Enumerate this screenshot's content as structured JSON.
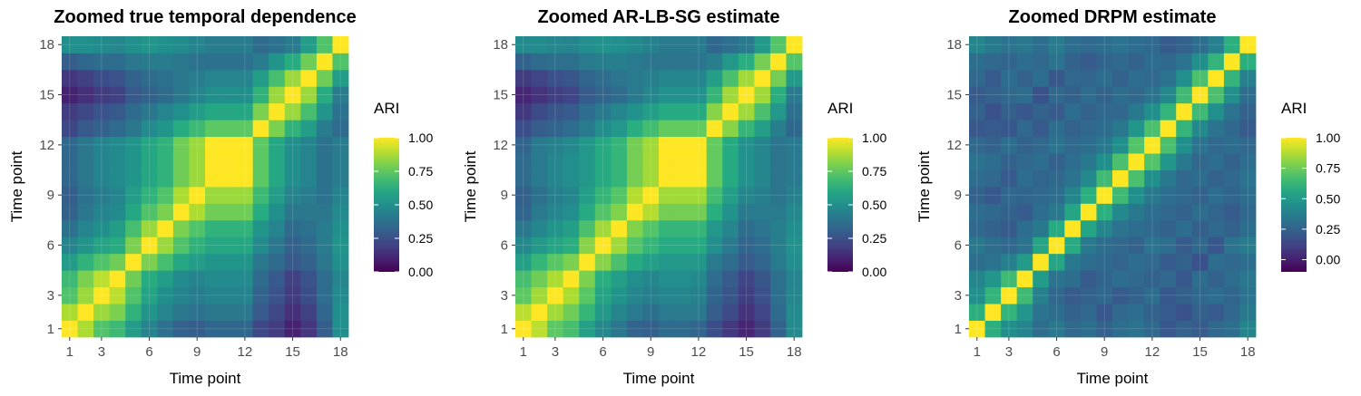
{
  "chart_data": [
    {
      "type": "heatmap",
      "title": "Zoomed true temporal dependence",
      "xlabel": "Time point",
      "ylabel": "Time point",
      "x_ticks": [
        "1",
        "3",
        "6",
        "9",
        "12",
        "15",
        "18"
      ],
      "y_ticks": [
        "1",
        "3",
        "6",
        "9",
        "12",
        "15",
        "18"
      ],
      "x_tick_values": [
        1,
        3,
        6,
        9,
        12,
        15,
        18
      ],
      "y_tick_values": [
        1,
        3,
        6,
        9,
        12,
        15,
        18
      ],
      "n": 18,
      "legend": {
        "title": "ARI",
        "ticks": [
          "1.00",
          "0.75",
          "0.50",
          "0.25",
          "0.00"
        ],
        "tick_values": [
          1,
          0.75,
          0.5,
          0.25,
          0
        ],
        "range": [
          0,
          1
        ]
      },
      "matrix": [
        [
          1.0,
          0.88,
          0.72,
          0.68,
          0.55,
          0.45,
          0.38,
          0.32,
          0.3,
          0.34,
          0.34,
          0.34,
          0.22,
          0.18,
          0.1,
          0.16,
          0.3,
          0.5
        ],
        [
          0.88,
          1.0,
          0.85,
          0.8,
          0.65,
          0.52,
          0.45,
          0.4,
          0.38,
          0.4,
          0.4,
          0.4,
          0.28,
          0.22,
          0.14,
          0.2,
          0.34,
          0.5
        ],
        [
          0.72,
          0.85,
          1.0,
          0.9,
          0.72,
          0.58,
          0.5,
          0.45,
          0.42,
          0.45,
          0.45,
          0.45,
          0.32,
          0.26,
          0.18,
          0.24,
          0.36,
          0.48
        ],
        [
          0.68,
          0.8,
          0.9,
          1.0,
          0.78,
          0.62,
          0.55,
          0.48,
          0.45,
          0.48,
          0.48,
          0.48,
          0.35,
          0.28,
          0.2,
          0.26,
          0.36,
          0.46
        ],
        [
          0.55,
          0.65,
          0.72,
          0.78,
          1.0,
          0.8,
          0.7,
          0.6,
          0.55,
          0.52,
          0.52,
          0.52,
          0.4,
          0.35,
          0.28,
          0.32,
          0.4,
          0.5
        ],
        [
          0.45,
          0.52,
          0.58,
          0.62,
          0.8,
          1.0,
          0.85,
          0.72,
          0.65,
          0.6,
          0.6,
          0.6,
          0.48,
          0.4,
          0.32,
          0.35,
          0.42,
          0.52
        ],
        [
          0.38,
          0.45,
          0.5,
          0.55,
          0.7,
          0.85,
          1.0,
          0.8,
          0.72,
          0.65,
          0.65,
          0.65,
          0.52,
          0.45,
          0.35,
          0.38,
          0.42,
          0.5
        ],
        [
          0.32,
          0.4,
          0.45,
          0.48,
          0.6,
          0.72,
          0.8,
          1.0,
          0.88,
          0.78,
          0.78,
          0.78,
          0.62,
          0.5,
          0.4,
          0.4,
          0.4,
          0.48
        ],
        [
          0.3,
          0.38,
          0.42,
          0.45,
          0.55,
          0.65,
          0.72,
          0.88,
          1.0,
          0.85,
          0.85,
          0.85,
          0.68,
          0.55,
          0.45,
          0.42,
          0.38,
          0.45
        ],
        [
          0.34,
          0.4,
          0.45,
          0.48,
          0.52,
          0.6,
          0.65,
          0.78,
          0.85,
          1.0,
          1.0,
          1.0,
          0.75,
          0.6,
          0.5,
          0.45,
          0.38,
          0.42
        ],
        [
          0.34,
          0.4,
          0.45,
          0.48,
          0.52,
          0.6,
          0.65,
          0.78,
          0.85,
          1.0,
          1.0,
          1.0,
          0.75,
          0.6,
          0.5,
          0.45,
          0.38,
          0.42
        ],
        [
          0.34,
          0.4,
          0.45,
          0.48,
          0.52,
          0.6,
          0.65,
          0.78,
          0.85,
          1.0,
          1.0,
          1.0,
          0.75,
          0.6,
          0.5,
          0.45,
          0.38,
          0.42
        ],
        [
          0.22,
          0.28,
          0.32,
          0.35,
          0.4,
          0.48,
          0.52,
          0.62,
          0.68,
          0.75,
          0.75,
          0.75,
          1.0,
          0.8,
          0.65,
          0.55,
          0.42,
          0.35
        ],
        [
          0.18,
          0.22,
          0.26,
          0.28,
          0.35,
          0.4,
          0.45,
          0.5,
          0.55,
          0.6,
          0.6,
          0.6,
          0.8,
          1.0,
          0.85,
          0.7,
          0.52,
          0.38
        ],
        [
          0.1,
          0.14,
          0.18,
          0.2,
          0.28,
          0.32,
          0.35,
          0.4,
          0.45,
          0.5,
          0.5,
          0.5,
          0.65,
          0.85,
          1.0,
          0.85,
          0.62,
          0.42
        ],
        [
          0.16,
          0.2,
          0.24,
          0.26,
          0.32,
          0.35,
          0.38,
          0.4,
          0.42,
          0.45,
          0.45,
          0.45,
          0.55,
          0.7,
          0.85,
          1.0,
          0.78,
          0.55
        ],
        [
          0.3,
          0.34,
          0.36,
          0.36,
          0.4,
          0.42,
          0.42,
          0.4,
          0.38,
          0.38,
          0.38,
          0.38,
          0.42,
          0.52,
          0.62,
          0.78,
          1.0,
          0.72
        ],
        [
          0.5,
          0.5,
          0.48,
          0.46,
          0.5,
          0.52,
          0.5,
          0.48,
          0.45,
          0.42,
          0.42,
          0.42,
          0.35,
          0.38,
          0.42,
          0.55,
          0.72,
          1.0
        ]
      ]
    },
    {
      "type": "heatmap",
      "title": "Zoomed AR-LB-SG estimate",
      "xlabel": "Time point",
      "ylabel": "Time point",
      "x_ticks": [
        "1",
        "3",
        "6",
        "9",
        "12",
        "15",
        "18"
      ],
      "y_ticks": [
        "1",
        "3",
        "6",
        "9",
        "12",
        "15",
        "18"
      ],
      "x_tick_values": [
        1,
        3,
        6,
        9,
        12,
        15,
        18
      ],
      "y_tick_values": [
        1,
        3,
        6,
        9,
        12,
        15,
        18
      ],
      "n": 18,
      "legend": {
        "title": "ARI",
        "ticks": [
          "1.00",
          "0.75",
          "0.50",
          "0.25",
          "0.00"
        ],
        "tick_values": [
          1,
          0.75,
          0.5,
          0.25,
          0
        ],
        "range": [
          0,
          1
        ]
      },
      "matrix": [
        [
          1.0,
          0.9,
          0.75,
          0.7,
          0.57,
          0.47,
          0.4,
          0.33,
          0.31,
          0.35,
          0.35,
          0.33,
          0.24,
          0.17,
          0.11,
          0.18,
          0.32,
          0.48
        ],
        [
          0.9,
          1.0,
          0.86,
          0.78,
          0.66,
          0.54,
          0.46,
          0.41,
          0.37,
          0.41,
          0.41,
          0.41,
          0.3,
          0.23,
          0.15,
          0.21,
          0.35,
          0.48
        ],
        [
          0.75,
          0.86,
          1.0,
          0.88,
          0.74,
          0.59,
          0.52,
          0.46,
          0.43,
          0.46,
          0.46,
          0.44,
          0.33,
          0.27,
          0.19,
          0.25,
          0.37,
          0.46
        ],
        [
          0.7,
          0.78,
          0.88,
          1.0,
          0.8,
          0.63,
          0.56,
          0.49,
          0.46,
          0.49,
          0.49,
          0.47,
          0.36,
          0.29,
          0.21,
          0.27,
          0.37,
          0.45
        ],
        [
          0.57,
          0.66,
          0.74,
          0.8,
          1.0,
          0.82,
          0.71,
          0.61,
          0.56,
          0.53,
          0.53,
          0.53,
          0.41,
          0.36,
          0.29,
          0.33,
          0.41,
          0.49
        ],
        [
          0.47,
          0.54,
          0.59,
          0.63,
          0.82,
          1.0,
          0.86,
          0.73,
          0.66,
          0.61,
          0.61,
          0.61,
          0.49,
          0.41,
          0.33,
          0.36,
          0.43,
          0.51
        ],
        [
          0.4,
          0.46,
          0.52,
          0.56,
          0.71,
          0.86,
          1.0,
          0.81,
          0.73,
          0.66,
          0.66,
          0.66,
          0.53,
          0.46,
          0.36,
          0.39,
          0.43,
          0.49
        ],
        [
          0.33,
          0.41,
          0.46,
          0.49,
          0.61,
          0.73,
          0.81,
          1.0,
          0.89,
          0.79,
          0.79,
          0.79,
          0.63,
          0.51,
          0.41,
          0.41,
          0.41,
          0.47
        ],
        [
          0.31,
          0.37,
          0.43,
          0.46,
          0.56,
          0.66,
          0.73,
          0.89,
          1.0,
          0.86,
          0.86,
          0.86,
          0.69,
          0.56,
          0.46,
          0.43,
          0.39,
          0.44
        ],
        [
          0.35,
          0.41,
          0.46,
          0.49,
          0.53,
          0.61,
          0.66,
          0.79,
          0.86,
          1.0,
          1.0,
          1.0,
          0.76,
          0.61,
          0.51,
          0.46,
          0.39,
          0.41
        ],
        [
          0.35,
          0.41,
          0.46,
          0.49,
          0.53,
          0.61,
          0.66,
          0.79,
          0.86,
          1.0,
          1.0,
          1.0,
          0.76,
          0.61,
          0.51,
          0.46,
          0.39,
          0.41
        ],
        [
          0.33,
          0.41,
          0.44,
          0.47,
          0.53,
          0.61,
          0.66,
          0.79,
          0.86,
          1.0,
          1.0,
          1.0,
          0.76,
          0.61,
          0.51,
          0.46,
          0.39,
          0.41
        ],
        [
          0.24,
          0.3,
          0.33,
          0.36,
          0.41,
          0.49,
          0.53,
          0.63,
          0.69,
          0.76,
          0.76,
          0.76,
          1.0,
          0.82,
          0.66,
          0.56,
          0.43,
          0.34
        ],
        [
          0.17,
          0.23,
          0.27,
          0.29,
          0.36,
          0.41,
          0.46,
          0.51,
          0.56,
          0.61,
          0.61,
          0.61,
          0.82,
          1.0,
          0.86,
          0.71,
          0.53,
          0.37
        ],
        [
          0.11,
          0.15,
          0.19,
          0.21,
          0.29,
          0.33,
          0.36,
          0.41,
          0.46,
          0.51,
          0.51,
          0.51,
          0.66,
          0.86,
          1.0,
          0.86,
          0.63,
          0.41
        ],
        [
          0.18,
          0.21,
          0.25,
          0.27,
          0.33,
          0.36,
          0.39,
          0.41,
          0.43,
          0.46,
          0.46,
          0.46,
          0.56,
          0.71,
          0.86,
          1.0,
          0.79,
          0.54
        ],
        [
          0.32,
          0.35,
          0.37,
          0.37,
          0.41,
          0.43,
          0.43,
          0.41,
          0.39,
          0.39,
          0.39,
          0.39,
          0.43,
          0.53,
          0.63,
          0.79,
          1.0,
          0.73
        ],
        [
          0.48,
          0.48,
          0.46,
          0.45,
          0.49,
          0.51,
          0.49,
          0.47,
          0.44,
          0.41,
          0.41,
          0.41,
          0.34,
          0.37,
          0.41,
          0.54,
          0.73,
          1.0
        ]
      ]
    },
    {
      "type": "heatmap",
      "title": "Zoomed DRPM estimate",
      "xlabel": "Time point",
      "ylabel": "Time point",
      "x_ticks": [
        "1",
        "3",
        "6",
        "9",
        "12",
        "15",
        "18"
      ],
      "y_ticks": [
        "1",
        "3",
        "6",
        "9",
        "12",
        "15",
        "18"
      ],
      "x_tick_values": [
        1,
        3,
        6,
        9,
        12,
        15,
        18
      ],
      "y_tick_values": [
        1,
        3,
        6,
        9,
        12,
        15,
        18
      ],
      "n": 18,
      "legend": {
        "title": "ARI",
        "ticks": [
          "1.00",
          "0.75",
          "0.50",
          "0.25",
          "0.00"
        ],
        "tick_values": [
          1,
          0.75,
          0.5,
          0.25,
          0
        ],
        "range": [
          -0.1,
          1
        ]
      },
      "matrix": [
        [
          1.0,
          0.6,
          0.45,
          0.4,
          0.3,
          0.35,
          0.28,
          0.3,
          0.25,
          0.3,
          0.32,
          0.28,
          0.2,
          0.25,
          0.22,
          0.28,
          0.3,
          0.4
        ],
        [
          0.6,
          1.0,
          0.62,
          0.48,
          0.32,
          0.3,
          0.25,
          0.28,
          0.2,
          0.28,
          0.3,
          0.25,
          0.22,
          0.18,
          0.25,
          0.22,
          0.28,
          0.35
        ],
        [
          0.45,
          0.62,
          1.0,
          0.65,
          0.38,
          0.28,
          0.22,
          0.25,
          0.28,
          0.22,
          0.25,
          0.3,
          0.2,
          0.24,
          0.28,
          0.3,
          0.26,
          0.32
        ],
        [
          0.4,
          0.48,
          0.65,
          1.0,
          0.5,
          0.32,
          0.3,
          0.22,
          0.26,
          0.3,
          0.28,
          0.25,
          0.28,
          0.2,
          0.3,
          0.25,
          0.3,
          0.34
        ],
        [
          0.3,
          0.32,
          0.38,
          0.5,
          1.0,
          0.55,
          0.35,
          0.3,
          0.28,
          0.26,
          0.3,
          0.28,
          0.22,
          0.25,
          0.18,
          0.3,
          0.28,
          0.3
        ],
        [
          0.35,
          0.3,
          0.28,
          0.32,
          0.55,
          1.0,
          0.58,
          0.35,
          0.3,
          0.28,
          0.25,
          0.32,
          0.3,
          0.22,
          0.28,
          0.2,
          0.32,
          0.36
        ],
        [
          0.28,
          0.25,
          0.22,
          0.3,
          0.35,
          0.58,
          1.0,
          0.55,
          0.4,
          0.32,
          0.3,
          0.28,
          0.25,
          0.3,
          0.24,
          0.28,
          0.25,
          0.3
        ],
        [
          0.3,
          0.28,
          0.25,
          0.22,
          0.3,
          0.35,
          0.55,
          1.0,
          0.6,
          0.42,
          0.35,
          0.3,
          0.28,
          0.25,
          0.3,
          0.26,
          0.22,
          0.28
        ],
        [
          0.25,
          0.2,
          0.28,
          0.26,
          0.28,
          0.3,
          0.4,
          0.6,
          1.0,
          0.65,
          0.45,
          0.35,
          0.3,
          0.28,
          0.25,
          0.3,
          0.26,
          0.3
        ],
        [
          0.3,
          0.28,
          0.22,
          0.3,
          0.26,
          0.28,
          0.32,
          0.42,
          0.65,
          1.0,
          0.68,
          0.45,
          0.35,
          0.28,
          0.3,
          0.25,
          0.28,
          0.32
        ],
        [
          0.32,
          0.3,
          0.25,
          0.28,
          0.3,
          0.25,
          0.3,
          0.35,
          0.45,
          0.68,
          1.0,
          0.7,
          0.48,
          0.35,
          0.28,
          0.3,
          0.25,
          0.3
        ],
        [
          0.28,
          0.25,
          0.3,
          0.25,
          0.28,
          0.32,
          0.28,
          0.3,
          0.35,
          0.45,
          0.7,
          1.0,
          0.68,
          0.45,
          0.32,
          0.28,
          0.3,
          0.28
        ],
        [
          0.2,
          0.22,
          0.2,
          0.28,
          0.22,
          0.3,
          0.25,
          0.28,
          0.3,
          0.35,
          0.48,
          0.68,
          1.0,
          0.62,
          0.42,
          0.32,
          0.28,
          0.22
        ],
        [
          0.25,
          0.18,
          0.24,
          0.2,
          0.25,
          0.22,
          0.3,
          0.25,
          0.28,
          0.28,
          0.35,
          0.45,
          0.62,
          1.0,
          0.65,
          0.45,
          0.32,
          0.25
        ],
        [
          0.22,
          0.25,
          0.28,
          0.3,
          0.18,
          0.28,
          0.24,
          0.3,
          0.25,
          0.3,
          0.28,
          0.32,
          0.42,
          0.65,
          1.0,
          0.68,
          0.45,
          0.3
        ],
        [
          0.28,
          0.22,
          0.3,
          0.25,
          0.3,
          0.2,
          0.28,
          0.26,
          0.3,
          0.25,
          0.3,
          0.28,
          0.32,
          0.45,
          0.68,
          1.0,
          0.62,
          0.38
        ],
        [
          0.3,
          0.28,
          0.26,
          0.3,
          0.28,
          0.32,
          0.25,
          0.22,
          0.26,
          0.28,
          0.25,
          0.3,
          0.28,
          0.32,
          0.45,
          0.62,
          1.0,
          0.6
        ],
        [
          0.4,
          0.35,
          0.32,
          0.34,
          0.3,
          0.36,
          0.3,
          0.28,
          0.3,
          0.32,
          0.3,
          0.28,
          0.22,
          0.25,
          0.3,
          0.38,
          0.6,
          1.0
        ]
      ]
    }
  ]
}
